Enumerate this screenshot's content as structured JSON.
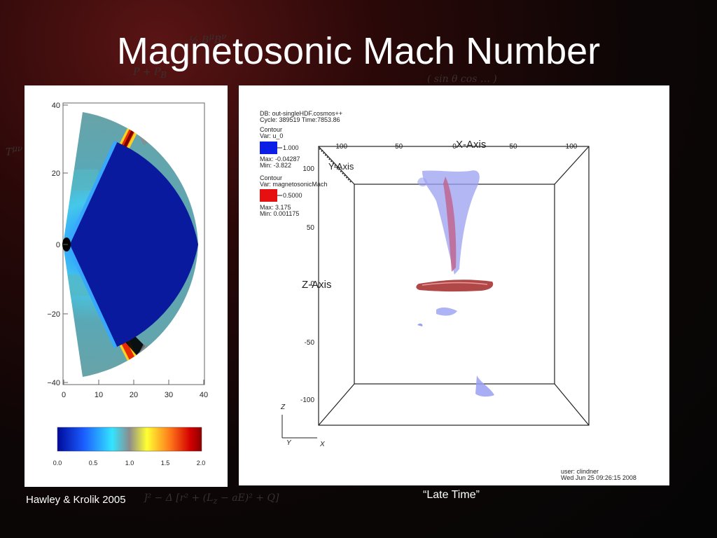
{
  "title": "Magnetosonic Mach Number",
  "left_plot": {
    "y_ticks": [
      "40",
      "20",
      "0",
      "−20",
      "−40"
    ],
    "x_ticks": [
      "0",
      "10",
      "20",
      "30",
      "40"
    ],
    "colorbar_ticks": [
      "0.0",
      "0.5",
      "1.0",
      "1.5",
      "2.0"
    ],
    "colorbar_colors": [
      "#000a9a",
      "#1a5cff",
      "#33e5ff",
      "#8c8c8c",
      "#ffff33",
      "#ff7a1a",
      "#d40000",
      "#8a0000"
    ]
  },
  "right_plot": {
    "db_line": "DB: out-singleHDF.cosmos++",
    "cycle_line": "Cycle: 389519   Time:7853.86",
    "contour1": {
      "heading": "Contour",
      "var": "Var: u_0",
      "level": "1.000",
      "max": "Max: -0.04287",
      "min": "Min: -3.822",
      "color": "#0a1ee6"
    },
    "contour2": {
      "heading": "Contour",
      "var": "Var: magnetosonicMach",
      "level": "0.5000",
      "max": "Max: 3.175",
      "min": "Min: 0.001175",
      "color": "#e61010"
    },
    "x_axis_label": "X-Axis",
    "y_axis_label": "Y-Axis",
    "z_axis_label": "Z-Axis",
    "x_ticks": [
      "-100",
      "-50",
      "0",
      "50",
      "100"
    ],
    "z_ticks": [
      "100",
      "50",
      "0",
      "-50",
      "-100"
    ],
    "triad_z": "Z",
    "triad_y": "Y",
    "triad_x": "X",
    "user_line": "user: clindner",
    "date_line": "Wed Jun 25 09:26:15 2008"
  },
  "caption_right": "“Late Time”",
  "caption_left": "Hawley & Krolik 2005"
}
